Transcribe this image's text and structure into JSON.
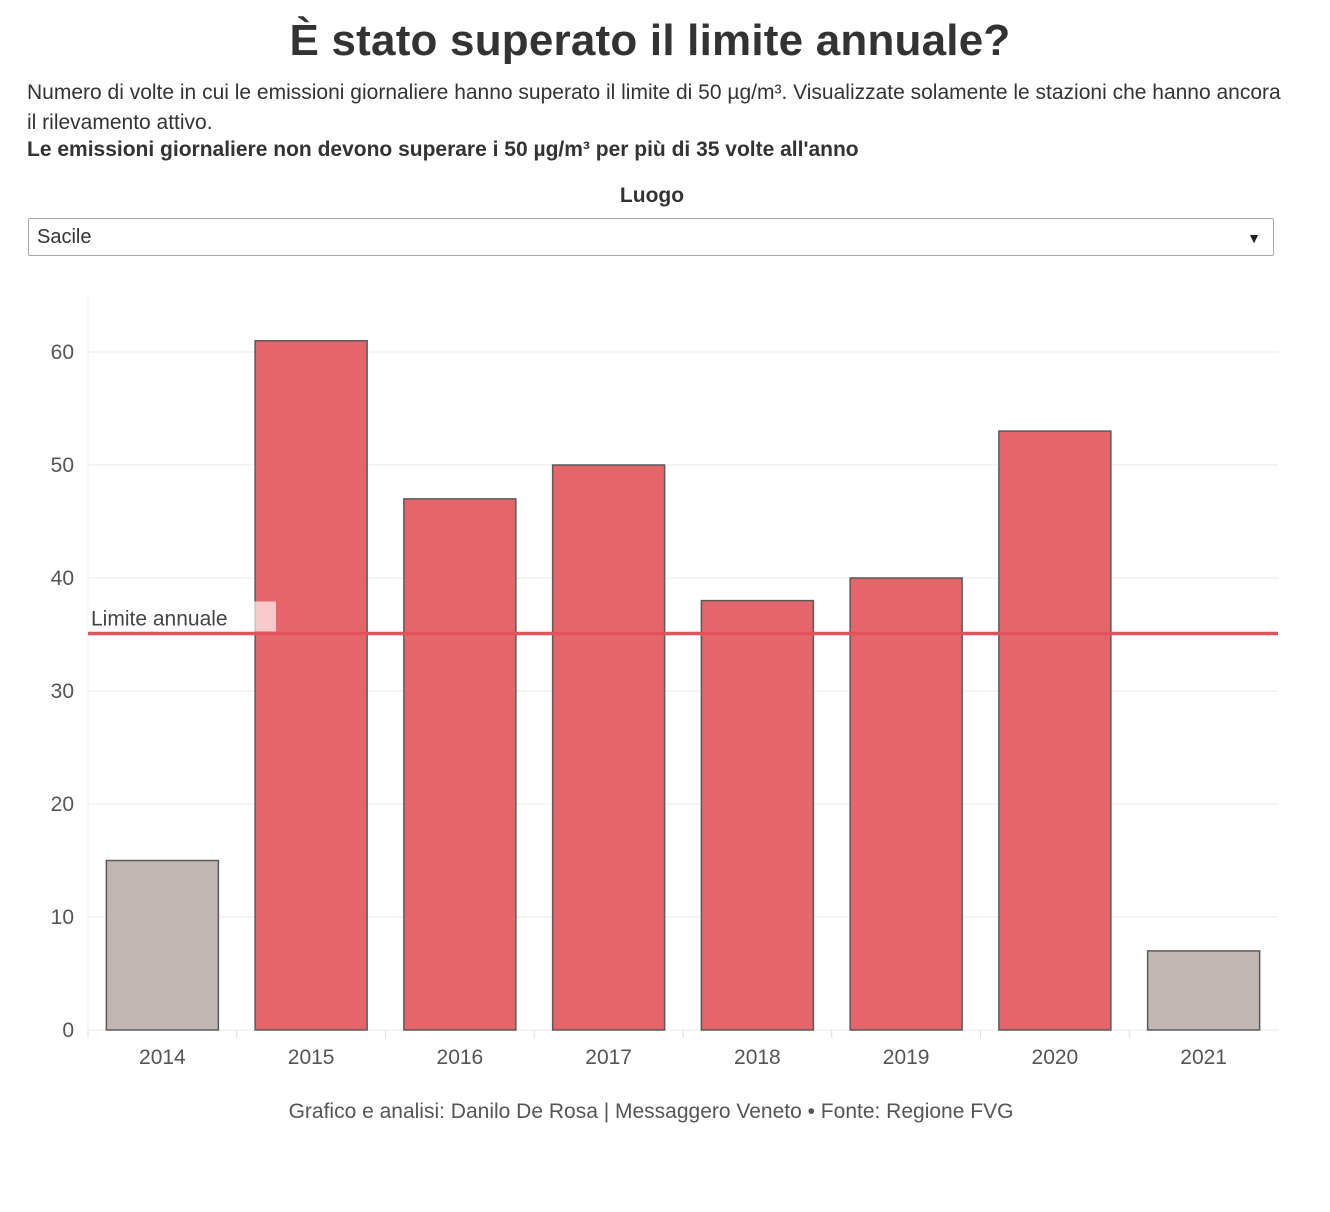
{
  "header": {
    "title": "È stato superato il limite annuale?",
    "subtitle": "Numero di volte in cui le emissioni giornaliere hanno superato il limite di 50 µg/m³. Visualizzate solamente le stazioni che hanno ancora il rilevamento attivo.",
    "note": "Le emissioni giornaliere non devono superare i 50 µg/m³ per più di 35 volte all'anno"
  },
  "filter": {
    "label": "Luogo",
    "selected": "Sacile"
  },
  "chart_data": {
    "type": "bar",
    "title": "",
    "xlabel": "",
    "ylabel": "",
    "categories": [
      "2014",
      "2015",
      "2016",
      "2017",
      "2018",
      "2019",
      "2020",
      "2021"
    ],
    "values": [
      15,
      61,
      47,
      50,
      38,
      40,
      53,
      7
    ],
    "ylim": [
      0,
      65
    ],
    "yticks": [
      0,
      10,
      20,
      30,
      40,
      50,
      60
    ],
    "grid": true,
    "reference_line": {
      "value": 35,
      "label": "Limite annuale"
    },
    "highlighted": [
      false,
      true,
      true,
      true,
      true,
      true,
      true,
      false
    ]
  },
  "colors": {
    "bar_highlight": "#e5666a",
    "bar_muted": "#c0b6b4",
    "bar_stroke": "#5a5a5a",
    "limit_line": "#e0535a",
    "grid": "#eeeeee"
  },
  "footer": {
    "source": "Grafico e analisi: Danilo De Rosa | Messaggero Veneto • Fonte: Regione FVG"
  }
}
